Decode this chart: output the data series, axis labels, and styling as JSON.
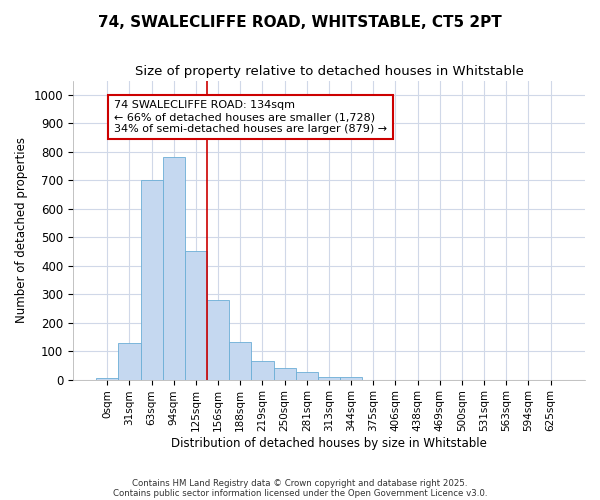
{
  "title1": "74, SWALECLIFFE ROAD, WHITSTABLE, CT5 2PT",
  "title2": "Size of property relative to detached houses in Whitstable",
  "xlabel": "Distribution of detached houses by size in Whitstable",
  "ylabel": "Number of detached properties",
  "categories": [
    "0sqm",
    "31sqm",
    "63sqm",
    "94sqm",
    "125sqm",
    "156sqm",
    "188sqm",
    "219sqm",
    "250sqm",
    "281sqm",
    "313sqm",
    "344sqm",
    "375sqm",
    "406sqm",
    "438sqm",
    "469sqm",
    "500sqm",
    "531sqm",
    "563sqm",
    "594sqm",
    "625sqm"
  ],
  "values": [
    5,
    128,
    700,
    780,
    450,
    278,
    133,
    65,
    40,
    25,
    10,
    10,
    0,
    0,
    0,
    0,
    0,
    0,
    0,
    0,
    0
  ],
  "bar_color": "#c5d8f0",
  "bar_edge_color": "#6baed6",
  "ref_line_x": 4.5,
  "ref_line_label": "74 SWALECLIFFE ROAD: 134sqm",
  "annotation_line1": "← 66% of detached houses are smaller (1,728)",
  "annotation_line2": "34% of semi-detached houses are larger (879) →",
  "annotation_box_facecolor": "#ffffff",
  "annotation_box_edgecolor": "#cc0000",
  "ylim": [
    0,
    1050
  ],
  "yticks": [
    0,
    100,
    200,
    300,
    400,
    500,
    600,
    700,
    800,
    900,
    1000
  ],
  "footer1": "Contains HM Land Registry data © Crown copyright and database right 2025.",
  "footer2": "Contains public sector information licensed under the Open Government Licence v3.0.",
  "bg_color": "#ffffff",
  "plot_bg_color": "#ffffff",
  "grid_color": "#d0d8e8",
  "title1_fontsize": 11,
  "title2_fontsize": 9.5
}
